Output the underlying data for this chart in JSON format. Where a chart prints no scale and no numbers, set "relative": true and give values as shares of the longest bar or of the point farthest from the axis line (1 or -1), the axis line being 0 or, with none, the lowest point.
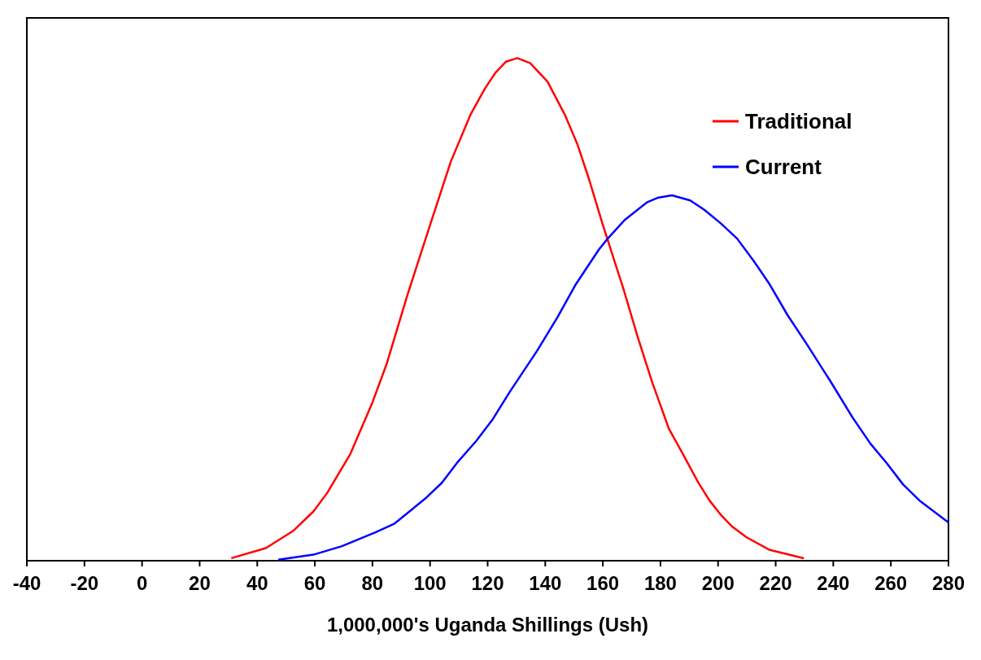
{
  "chart_data": {
    "type": "line",
    "relative": true,
    "xlabel": "1,000,000's Uganda Shillings (Ush)",
    "xlim": [
      -40,
      280
    ],
    "xticks": [
      -40,
      -20,
      0,
      20,
      40,
      60,
      80,
      100,
      120,
      140,
      160,
      180,
      200,
      220,
      240,
      260,
      280
    ],
    "legend": "top right",
    "grid": false,
    "marker": "none",
    "line_style": "solid",
    "series": [
      {
        "name": "Traditional",
        "color": "#ff0000",
        "x": [
          31,
          43,
          52.4,
          59.5,
          64.3,
          72.2,
          79.8,
          84.9,
          92,
          99.9,
          107.2,
          114,
          119,
          122.7,
          126.4,
          130.3,
          134.8,
          140.8,
          147,
          151.2,
          155.2,
          160,
          167.3,
          172.1,
          177.2,
          182.9,
          187.9,
          193,
          197,
          201,
          204.7,
          209.8,
          217.7,
          229.8
        ],
        "values": [
          0.005,
          0.025,
          0.059,
          0.098,
          0.135,
          0.211,
          0.312,
          0.391,
          0.526,
          0.666,
          0.794,
          0.887,
          0.939,
          0.971,
          0.993,
          1,
          0.99,
          0.953,
          0.885,
          0.828,
          0.759,
          0.668,
          0.538,
          0.445,
          0.354,
          0.263,
          0.211,
          0.157,
          0.12,
          0.091,
          0.069,
          0.047,
          0.022,
          0.005
        ]
      },
      {
        "name": "Current",
        "color": "#0000ff",
        "x": [
          47.3,
          59.5,
          69.4,
          81.2,
          87.7,
          98.2,
          104.1,
          109.7,
          116,
          121.6,
          127.8,
          137.2,
          144.2,
          150.4,
          158.6,
          161.4,
          167.6,
          175.3,
          179,
          184,
          190.3,
          195.3,
          201,
          206.6,
          212.3,
          217.9,
          224.1,
          230.9,
          238.8,
          246.7,
          252.9,
          258.6,
          264.2,
          269.9,
          280
        ],
        "values": [
          0.002,
          0.012,
          0.029,
          0.057,
          0.074,
          0.123,
          0.155,
          0.197,
          0.238,
          0.28,
          0.337,
          0.418,
          0.484,
          0.548,
          0.619,
          0.639,
          0.678,
          0.713,
          0.722,
          0.727,
          0.717,
          0.698,
          0.671,
          0.641,
          0.597,
          0.55,
          0.489,
          0.43,
          0.359,
          0.285,
          0.233,
          0.194,
          0.152,
          0.12,
          0.076
        ]
      }
    ]
  }
}
